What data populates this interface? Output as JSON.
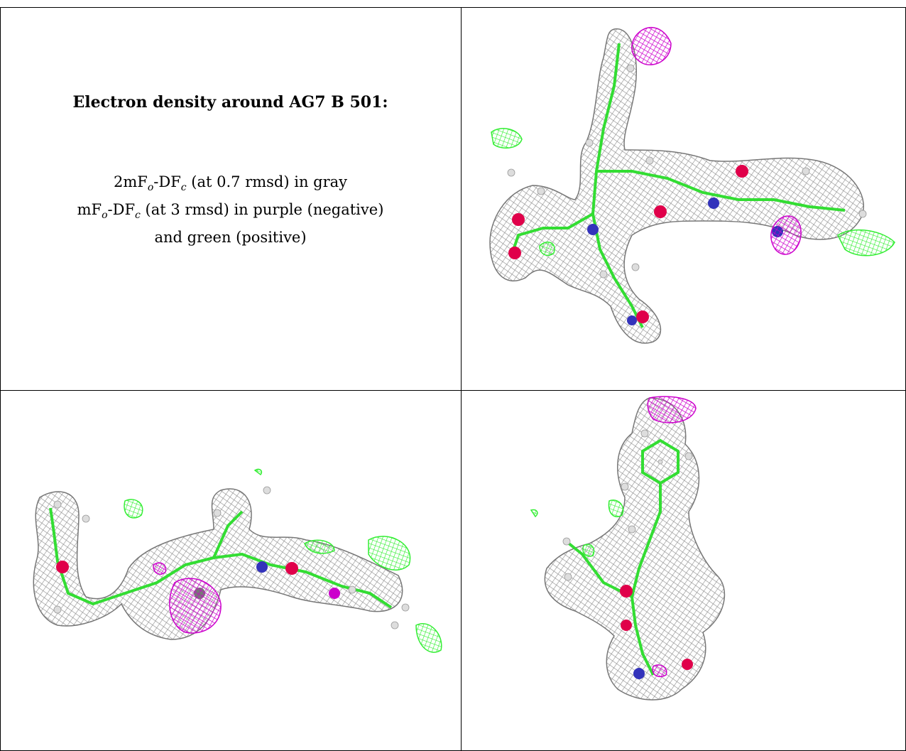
{
  "caption": {
    "title": "Electron density around AG7 B 501:",
    "line1_prefix": "2mF",
    "line1_sub_o": "o",
    "line1_mid": "-DF",
    "line1_sub_c": "c",
    "line1_suffix": " (at 0.7 rmsd) in gray",
    "line2_prefix": "mF",
    "line2_sub_o": "o",
    "line2_mid": "-DF",
    "line2_sub_c": "c",
    "line2_suffix": " (at 3 rmsd) in purple (negative)",
    "line3": "and green (positive)"
  },
  "colors": {
    "density_2fofc": "#8c8c8c",
    "difference_negative": "#cc00cc",
    "difference_positive": "#33ee33",
    "carbon": "#33dd33",
    "oxygen": "#e0004a",
    "nitrogen": "#3333bb",
    "hydrogen": "#dddddd"
  }
}
